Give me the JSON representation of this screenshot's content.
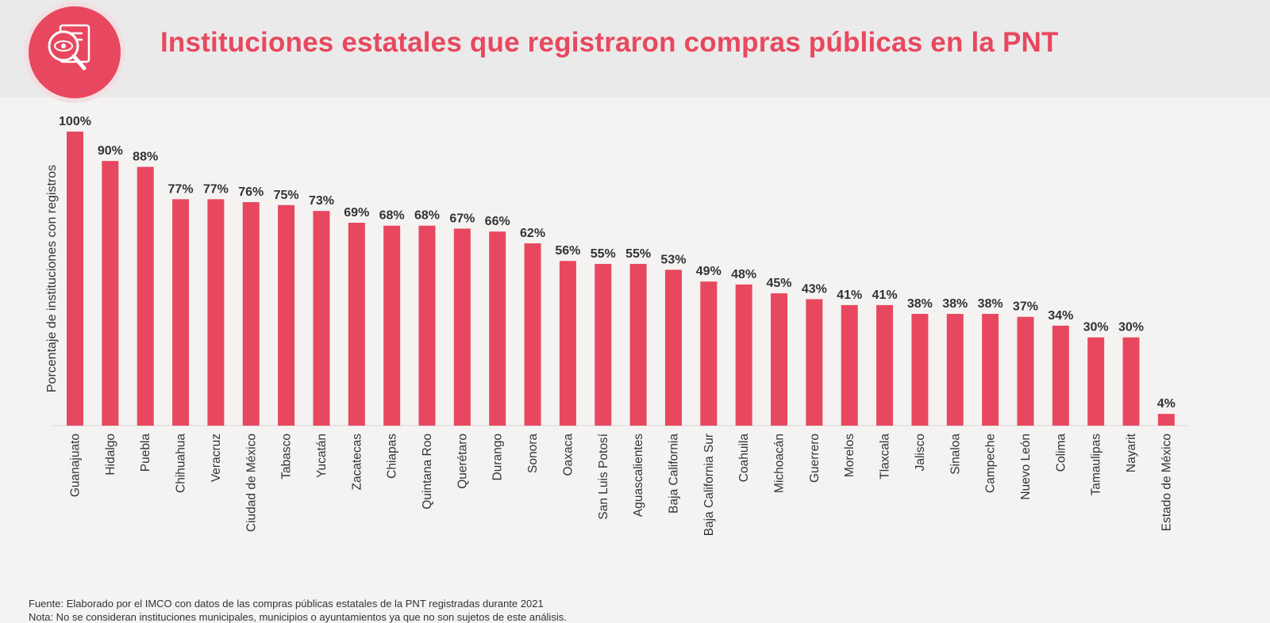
{
  "header": {
    "title": "Instituciones estatales que registraron compras públicas en la PNT",
    "logo_icon": "document-magnifier-icon"
  },
  "colors": {
    "accent": "#e8485f",
    "text": "#333333",
    "background": "#f4f3f2"
  },
  "chart_data": {
    "type": "bar",
    "title": "Instituciones estatales que registraron compras públicas en la PNT",
    "xlabel": "",
    "ylabel": "Porcentaje de instituciones con registros",
    "ylim": [
      0,
      100
    ],
    "grid": false,
    "categories": [
      "Guanajuato",
      "Hidalgo",
      "Puebla",
      "Chihuahua",
      "Veracruz",
      "Ciudad de México",
      "Tabasco",
      "Yucatán",
      "Zacatecas",
      "Chiapas",
      "Quintana Roo",
      "Querétaro",
      "Durango",
      "Sonora",
      "Oaxaca",
      "San Luis Potosí",
      "Aguascalientes",
      "Baja California",
      "Baja California Sur",
      "Coahuila",
      "Michoacán",
      "Guerrero",
      "Morelos",
      "Tlaxcala",
      "Jalisco",
      "Sinaloa",
      "Campeche",
      "Nuevo León",
      "Colima",
      "Tamaulipas",
      "Nayarit",
      "Estado de México"
    ],
    "values": [
      100,
      90,
      88,
      77,
      77,
      76,
      75,
      73,
      69,
      68,
      68,
      67,
      66,
      62,
      56,
      55,
      55,
      53,
      49,
      48,
      45,
      43,
      41,
      41,
      38,
      38,
      38,
      37,
      34,
      30,
      30,
      4
    ],
    "data_labels": [
      "100%",
      "90%",
      "88%",
      "77%",
      "77%",
      "76%",
      "75%",
      "73%",
      "69%",
      "68%",
      "68%",
      "67%",
      "66%",
      "62%",
      "56%",
      "55%",
      "55%",
      "53%",
      "49%",
      "48%",
      "45%",
      "43%",
      "41%",
      "41%",
      "38%",
      "38%",
      "38%",
      "37%",
      "34%",
      "30%",
      "30%",
      "4%"
    ]
  },
  "footnotes": {
    "source": "Fuente: Elaborado por el IMCO con datos de las compras públicas estatales de la PNT registradas durante 2021",
    "note": "Nota: No se consideran instituciones municipales, municipios o ayuntamientos ya que no son sujetos de este análisis."
  }
}
